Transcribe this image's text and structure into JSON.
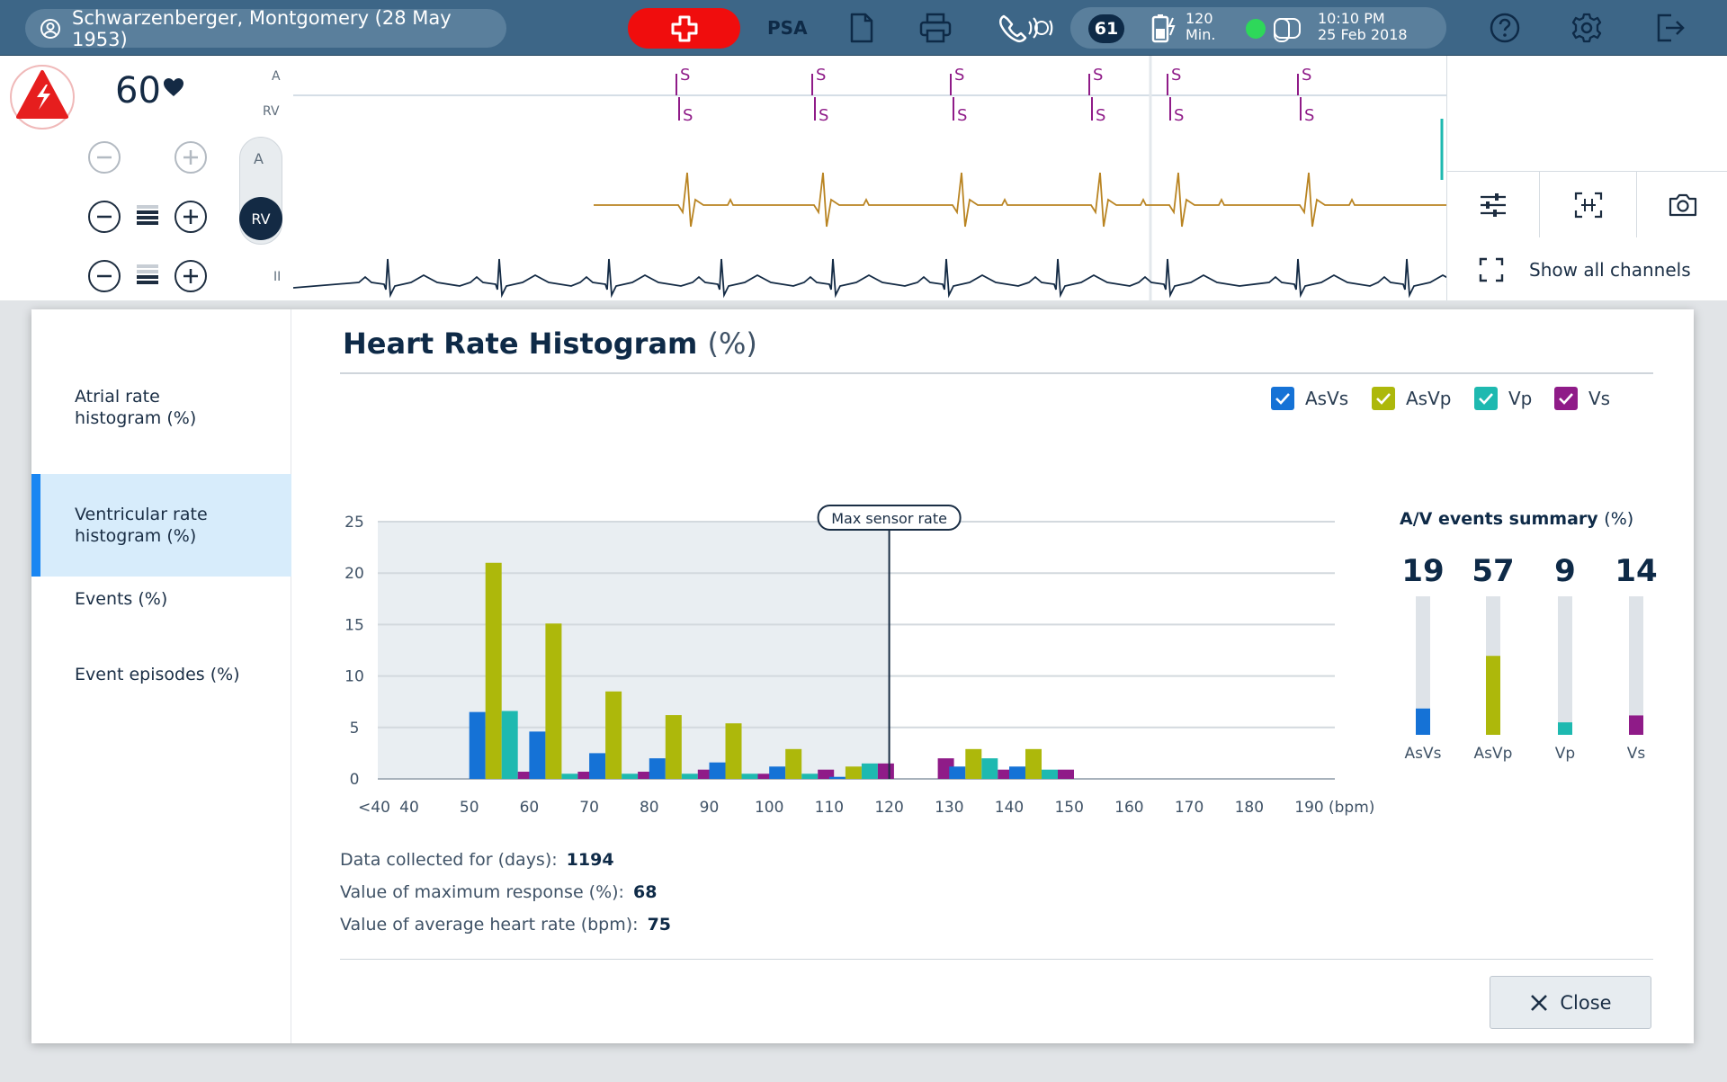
{
  "header": {
    "patient": "Schwarzenberger, Montgomery (28 May 1953)",
    "psa_label": "PSA",
    "sessions_count": "61",
    "battery_minutes": "120",
    "battery_unit": "Min.",
    "time": "10:10 PM",
    "date": "25 Feb 2018"
  },
  "ecg": {
    "heart_rate": "60",
    "lead_labels": {
      "a": "A",
      "rv": "RV",
      "ii": "II"
    },
    "selector": {
      "top": "A",
      "selected": "RV"
    },
    "marker": "S"
  },
  "toolbar": {
    "show_all_channels": "Show all channels"
  },
  "nav": {
    "items": [
      {
        "label": "Atrial rate\nhistogram (%)"
      },
      {
        "label": "Ventricular rate\nhistogram (%)"
      },
      {
        "label": "Events (%)"
      },
      {
        "label": "Event episodes (%)"
      }
    ],
    "active_index": 1
  },
  "panel": {
    "title": "Heart Rate Histogram",
    "title_unit": "(%)",
    "legend": [
      {
        "name": "AsVs",
        "color": "#1572d6",
        "checked": true
      },
      {
        "name": "AsVp",
        "color": "#adb80b",
        "checked": true
      },
      {
        "name": "Vp",
        "color": "#1eb9b0",
        "checked": true
      },
      {
        "name": "Vs",
        "color": "#8f1b88",
        "checked": true
      }
    ],
    "max_sensor_label": "Max sensor rate",
    "stats": [
      {
        "label": "Data collected for (days):",
        "value": "1194"
      },
      {
        "label": "Value of maximum response (%):",
        "value": "68"
      },
      {
        "label": "Value of average heart rate (bpm):",
        "value": "75"
      }
    ],
    "close_label": "Close"
  },
  "chart_data": [
    {
      "type": "bar",
      "xlabel": "(bpm)",
      "ylim": [
        0,
        25
      ],
      "yticks": [
        0,
        5,
        10,
        15,
        20,
        25
      ],
      "x_tick_labels": [
        "<40",
        "40",
        "50",
        "60",
        "70",
        "80",
        "90",
        "100",
        "110",
        "120",
        "130",
        "140",
        "150",
        "160",
        "170",
        "180",
        "190"
      ],
      "bin_starts": [
        50,
        60,
        70,
        80,
        90,
        100,
        110,
        120,
        130,
        140
      ],
      "max_sensor_rate": 120,
      "grid": true,
      "series": [
        {
          "name": "AsVs",
          "values": [
            6.5,
            4.6,
            2.5,
            2.0,
            1.6,
            1.2,
            0.2,
            0,
            1.2,
            1.2
          ]
        },
        {
          "name": "AsVp",
          "values": [
            21.0,
            15.1,
            8.5,
            6.2,
            5.4,
            2.9,
            1.2,
            0,
            2.9,
            2.9
          ]
        },
        {
          "name": "Vp",
          "values": [
            6.6,
            0.5,
            0.5,
            0.5,
            0.5,
            0.5,
            1.5,
            0,
            2.0,
            0.9
          ]
        },
        {
          "name": "Vs",
          "values": [
            0.7,
            0.7,
            0.7,
            0.9,
            0.5,
            0.9,
            1.5,
            2.0,
            0.9,
            0.9
          ]
        }
      ]
    },
    {
      "type": "bar",
      "title": "A/V events summary",
      "title_unit": "(%)",
      "categories": [
        "AsVs",
        "AsVp",
        "Vp",
        "Vs"
      ],
      "values": [
        19,
        57,
        9,
        14
      ],
      "ylim": [
        0,
        100
      ]
    }
  ]
}
